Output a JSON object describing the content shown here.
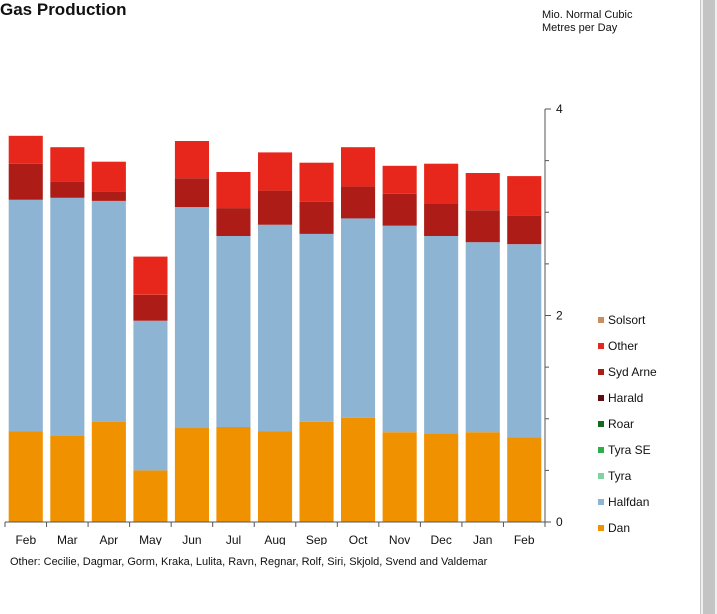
{
  "title": "Gas Production",
  "unit_label": "Mio. Normal Cubic\nMetres per Day",
  "note": "Other: Cecilie, Dagmar, Gorm, Kraka, Lulita, Ravn, Regnar, Rolf, Siri, Skjold, Svend and Valdemar",
  "chart_data": {
    "type": "bar",
    "stacked": true,
    "categories": [
      "Feb",
      "Mar",
      "Apr",
      "May",
      "Jun",
      "Jul",
      "Aug",
      "Sep",
      "Oct",
      "Nov",
      "Dec",
      "Jan",
      "Feb"
    ],
    "ylim": [
      0,
      4
    ],
    "yticks": [
      "0",
      "2",
      "4"
    ],
    "y_axis_side": "right",
    "legend_position": "right",
    "series": [
      {
        "name": "Dan",
        "color": "#f09100",
        "values": [
          0.88,
          0.84,
          0.97,
          0.5,
          0.91,
          0.92,
          0.88,
          0.97,
          1.01,
          0.87,
          0.86,
          0.87,
          0.82
        ]
      },
      {
        "name": "Halfdan",
        "color": "#8db4d2",
        "values": [
          2.24,
          2.3,
          2.14,
          1.45,
          2.14,
          1.85,
          2.0,
          1.82,
          1.93,
          2.0,
          1.91,
          1.84,
          1.87
        ]
      },
      {
        "name": "Tyra",
        "color": "#7fd3a0",
        "values": [
          0,
          0,
          0,
          0,
          0,
          0,
          0,
          0,
          0,
          0,
          0,
          0,
          0
        ]
      },
      {
        "name": "Tyra SE",
        "color": "#2eae4a",
        "values": [
          0,
          0,
          0,
          0,
          0,
          0,
          0,
          0,
          0,
          0,
          0,
          0,
          0
        ]
      },
      {
        "name": "Roar",
        "color": "#126a22",
        "values": [
          0,
          0,
          0,
          0,
          0,
          0,
          0,
          0,
          0,
          0,
          0,
          0,
          0
        ]
      },
      {
        "name": "Harald",
        "color": "#5e0d10",
        "values": [
          0,
          0,
          0,
          0,
          0,
          0,
          0,
          0,
          0,
          0,
          0,
          0,
          0
        ]
      },
      {
        "name": "Syd Arne",
        "color": "#ad1c16",
        "values": [
          0.35,
          0.16,
          0.09,
          0.25,
          0.28,
          0.27,
          0.33,
          0.31,
          0.31,
          0.31,
          0.31,
          0.31,
          0.28
        ]
      },
      {
        "name": "Other",
        "color": "#e8271c",
        "values": [
          0.27,
          0.33,
          0.29,
          0.37,
          0.36,
          0.35,
          0.37,
          0.38,
          0.38,
          0.27,
          0.39,
          0.36,
          0.38
        ]
      },
      {
        "name": "Solsort",
        "color": "#c98d5e",
        "values": [
          0,
          0,
          0,
          0,
          0,
          0,
          0,
          0,
          0,
          0,
          0,
          0,
          0
        ]
      }
    ],
    "legend_order": [
      "Solsort",
      "Other",
      "Syd Arne",
      "Harald",
      "Roar",
      "Tyra SE",
      "Tyra",
      "Halfdan",
      "Dan"
    ]
  }
}
